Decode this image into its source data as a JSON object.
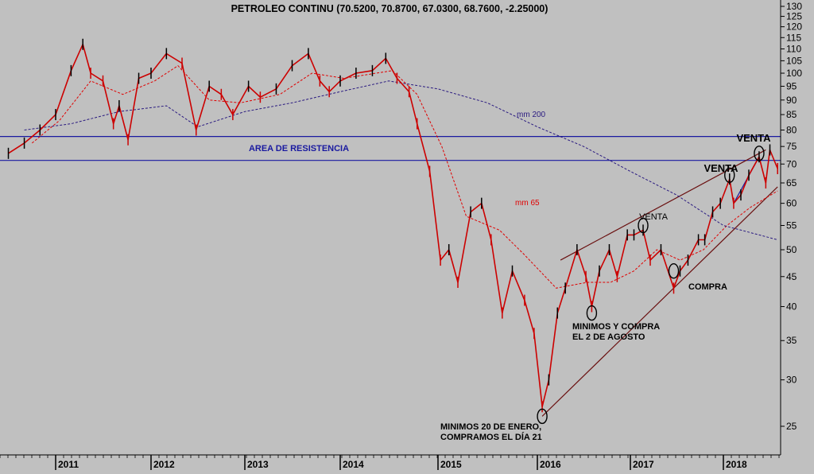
{
  "chart_data": {
    "type": "line",
    "title": "PETROLEO CONTINU (70.5200, 70.8700, 67.0300, 68.7600, -2.25000)",
    "y_scale": "log",
    "ylim": [
      22,
      130
    ],
    "y_ticks": [
      130,
      125,
      120,
      115,
      110,
      105,
      100,
      95,
      90,
      85,
      80,
      75,
      70,
      65,
      60,
      55,
      50,
      45,
      40,
      35,
      30,
      25
    ],
    "x_ticks": [
      "2011",
      "2012",
      "2013",
      "2014",
      "2015",
      "2016",
      "2017",
      "2018"
    ],
    "grid": false,
    "series": [
      {
        "name": "",
        "role": "price",
        "color": "#cc0000",
        "points": [
          [
            "2010-07-01",
            73
          ],
          [
            "2010-09-01",
            76
          ],
          [
            "2010-11-01",
            80
          ],
          [
            "2011-01-01",
            85
          ],
          [
            "2011-03-01",
            101
          ],
          [
            "2011-04-15",
            112
          ],
          [
            "2011-05-15",
            100
          ],
          [
            "2011-07-01",
            97
          ],
          [
            "2011-08-10",
            82
          ],
          [
            "2011-09-01",
            88
          ],
          [
            "2011-10-05",
            77
          ],
          [
            "2011-11-15",
            98
          ],
          [
            "2012-01-01",
            100
          ],
          [
            "2012-03-01",
            108
          ],
          [
            "2012-05-01",
            104
          ],
          [
            "2012-06-25",
            80
          ],
          [
            "2012-08-15",
            95
          ],
          [
            "2012-10-01",
            92
          ],
          [
            "2012-11-15",
            85
          ],
          [
            "2013-01-15",
            95
          ],
          [
            "2013-03-01",
            91
          ],
          [
            "2013-05-01",
            94
          ],
          [
            "2013-07-01",
            103
          ],
          [
            "2013-09-01",
            108
          ],
          [
            "2013-10-15",
            97
          ],
          [
            "2013-11-20",
            93
          ],
          [
            "2014-01-01",
            97
          ],
          [
            "2014-03-01",
            100
          ],
          [
            "2014-05-01",
            101
          ],
          [
            "2014-06-20",
            106
          ],
          [
            "2014-08-01",
            98
          ],
          [
            "2014-09-15",
            93
          ],
          [
            "2014-10-15",
            82
          ],
          [
            "2014-12-01",
            68
          ],
          [
            "2015-01-10",
            48
          ],
          [
            "2015-02-10",
            50
          ],
          [
            "2015-03-15",
            44
          ],
          [
            "2015-05-01",
            58
          ],
          [
            "2015-06-10",
            60
          ],
          [
            "2015-07-15",
            52
          ],
          [
            "2015-08-25",
            39
          ],
          [
            "2015-10-01",
            46
          ],
          [
            "2015-11-15",
            41
          ],
          [
            "2015-12-20",
            36
          ],
          [
            "2016-01-20",
            27
          ],
          [
            "2016-02-15",
            30
          ],
          [
            "2016-03-20",
            39
          ],
          [
            "2016-04-20",
            43
          ],
          [
            "2016-06-05",
            50
          ],
          [
            "2016-07-10",
            45
          ],
          [
            "2016-08-02",
            40
          ],
          [
            "2016-09-01",
            46
          ],
          [
            "2016-10-10",
            50
          ],
          [
            "2016-11-10",
            45
          ],
          [
            "2016-12-20",
            53
          ],
          [
            "2017-01-15",
            53
          ],
          [
            "2017-02-20",
            54
          ],
          [
            "2017-03-20",
            48
          ],
          [
            "2017-05-01",
            50
          ],
          [
            "2017-06-20",
            43
          ],
          [
            "2017-07-15",
            46
          ],
          [
            "2017-08-15",
            48
          ],
          [
            "2017-09-25",
            52
          ],
          [
            "2017-10-20",
            52
          ],
          [
            "2017-11-20",
            58
          ],
          [
            "2017-12-20",
            60
          ],
          [
            "2018-01-25",
            66
          ],
          [
            "2018-02-10",
            60
          ],
          [
            "2018-03-10",
            62
          ],
          [
            "2018-04-10",
            67
          ],
          [
            "2018-05-20",
            72
          ],
          [
            "2018-06-15",
            65
          ],
          [
            "2018-07-01",
            74
          ],
          [
            "2018-07-31",
            68.76
          ]
        ]
      },
      {
        "name": "mm 65",
        "color": "#e00000",
        "dashed": true,
        "points": [
          [
            "2010-10-01",
            76
          ],
          [
            "2011-01-15",
            83
          ],
          [
            "2011-05-15",
            97
          ],
          [
            "2011-09-15",
            92
          ],
          [
            "2012-01-15",
            97
          ],
          [
            "2012-04-15",
            103
          ],
          [
            "2012-08-15",
            90
          ],
          [
            "2012-12-15",
            89
          ],
          [
            "2013-05-15",
            92
          ],
          [
            "2013-09-15",
            100
          ],
          [
            "2014-01-15",
            98
          ],
          [
            "2014-05-15",
            100
          ],
          [
            "2014-07-15",
            101
          ],
          [
            "2014-10-15",
            92
          ],
          [
            "2015-01-15",
            75
          ],
          [
            "2015-04-15",
            57
          ],
          [
            "2015-08-15",
            54
          ],
          [
            "2015-11-15",
            49
          ],
          [
            "2016-03-15",
            43
          ],
          [
            "2016-07-15",
            44
          ],
          [
            "2016-10-15",
            44
          ],
          [
            "2017-01-15",
            46
          ],
          [
            "2017-04-15",
            50
          ],
          [
            "2017-07-15",
            48
          ],
          [
            "2017-10-15",
            50
          ],
          [
            "2018-01-15",
            55
          ],
          [
            "2018-04-15",
            59
          ],
          [
            "2018-07-31",
            63
          ]
        ]
      },
      {
        "name": "mm 200",
        "color": "#2a1a80",
        "dashed": true,
        "points": [
          [
            "2010-09-01",
            80
          ],
          [
            "2011-03-01",
            82
          ],
          [
            "2011-09-01",
            86
          ],
          [
            "2012-03-01",
            88
          ],
          [
            "2012-07-01",
            81
          ],
          [
            "2013-01-01",
            86
          ],
          [
            "2013-07-01",
            89
          ],
          [
            "2014-01-01",
            93
          ],
          [
            "2014-07-01",
            97
          ],
          [
            "2015-01-01",
            94
          ],
          [
            "2015-07-01",
            89
          ],
          [
            "2016-01-01",
            81
          ],
          [
            "2016-07-01",
            75
          ],
          [
            "2017-01-01",
            68
          ],
          [
            "2017-07-01",
            62
          ],
          [
            "2018-01-01",
            55
          ],
          [
            "2018-07-31",
            52
          ]
        ]
      }
    ],
    "horizontal_lines": [
      78,
      71
    ],
    "trend_lines": [
      {
        "name": "support",
        "color": "#6a1010",
        "from": [
          "2016-01-20",
          26
        ],
        "to": [
          "2018-07-31",
          64
        ]
      },
      {
        "name": "resistance",
        "color": "#6a1010",
        "from": [
          "2016-04-01",
          48
        ],
        "to": [
          "2018-06-15",
          74
        ]
      },
      {
        "name": "short-support",
        "color": "#1a1aa0",
        "from": [
          "2018-02-10",
          60
        ],
        "to": [
          "2018-05-20",
          72
        ]
      }
    ],
    "circles": [
      [
        "2016-01-20",
        26
      ],
      [
        "2016-08-02",
        39
      ],
      [
        "2017-02-20",
        55
      ],
      [
        "2017-06-20",
        46
      ],
      [
        "2018-01-25",
        67
      ],
      [
        "2018-05-20",
        73
      ]
    ],
    "annotations": [
      {
        "text": "AREA DE RESISTENCIA",
        "color": "#1a1aa0"
      },
      {
        "text": "mm 200",
        "color": "#2a1a80"
      },
      {
        "text": "mm 65",
        "color": "#e00000"
      },
      {
        "text": "VENTA",
        "color": "#000000"
      },
      {
        "text": "VENTA",
        "color": "#000000"
      },
      {
        "text": "VENTA",
        "color": "#000000"
      },
      {
        "text": "COMPRA",
        "color": "#000000"
      },
      {
        "text": "MINIMOS Y COMPRA",
        "color": "#000000"
      },
      {
        "text": "EL 2 DE AGOSTO",
        "color": "#000000"
      },
      {
        "text": "MINIMOS 20 DE ENERO,",
        "color": "#000000"
      },
      {
        "text": "COMPRAMOS EL DÍA 21",
        "color": "#000000"
      }
    ]
  }
}
